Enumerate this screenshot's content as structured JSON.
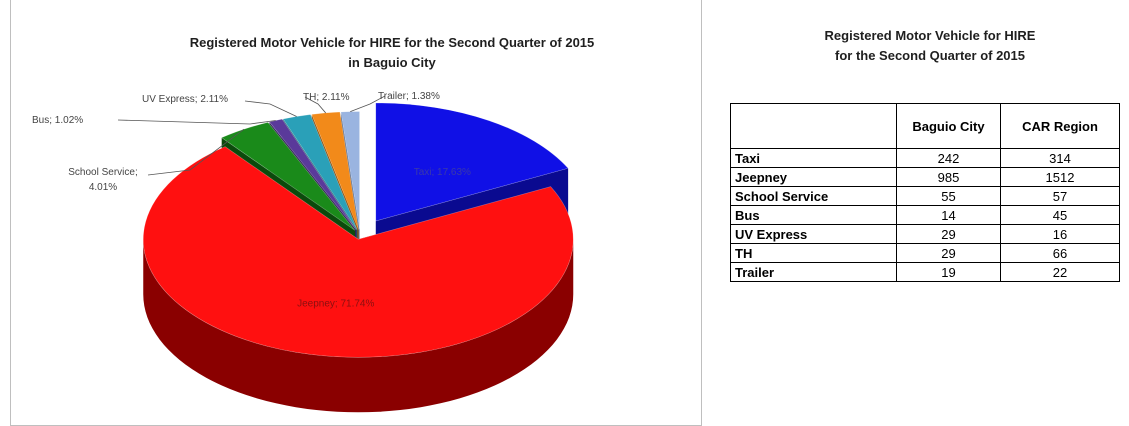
{
  "chart_data": [
    {
      "type": "pie",
      "title_lines": [
        "Registered Motor Vehicle for HIRE  for the Second Quarter of 2015",
        "in Baguio City"
      ],
      "slices": [
        {
          "label": "Taxi",
          "value": 17.63,
          "text": "Taxi; 17.63%",
          "color": "#1010e6",
          "side": "#0a0a90"
        },
        {
          "label": "Jeepney",
          "value": 71.74,
          "text": "Jeepney; 71.74%",
          "color": "#ff1010",
          "side": "#8a0000"
        },
        {
          "label": "School Service",
          "value": 4.01,
          "text": "School Service;",
          "text2": "4.01%",
          "color": "#1a8a1a",
          "side": "#0c4a0c"
        },
        {
          "label": "Bus",
          "value": 1.02,
          "text": "Bus; 1.02%",
          "color": "#5a3a9a",
          "side": "#2e1e55"
        },
        {
          "label": "UV Express",
          "value": 2.11,
          "text": "UV Express; 2.11%",
          "color": "#2aa0b8",
          "side": "#15606e"
        },
        {
          "label": "TH",
          "value": 2.11,
          "text": "TH; 2.11%",
          "color": "#f28a1a",
          "side": "#8e4e0a"
        },
        {
          "label": "Trailer",
          "value": 1.38,
          "text": "Trailer; 1.38%",
          "color": "#9ab4e0",
          "side": "#5a6e90"
        }
      ]
    },
    {
      "type": "table",
      "title_lines": [
        "Registered Motor Vehicle for HIRE",
        "for the Second Quarter of 2015"
      ],
      "columns": [
        "",
        "Baguio City",
        "CAR Region"
      ],
      "rows": [
        {
          "category": "Taxi",
          "baguio": 242,
          "car": 314
        },
        {
          "category": "Jeepney",
          "baguio": 985,
          "car": 1512
        },
        {
          "category": "School Service",
          "baguio": 55,
          "car": 57
        },
        {
          "category": "Bus",
          "baguio": 14,
          "car": 45
        },
        {
          "category": "UV Express",
          "baguio": 29,
          "car": 16
        },
        {
          "category": "TH",
          "baguio": 29,
          "car": 66
        },
        {
          "category": "Trailer",
          "baguio": 19,
          "car": 22
        }
      ]
    }
  ]
}
